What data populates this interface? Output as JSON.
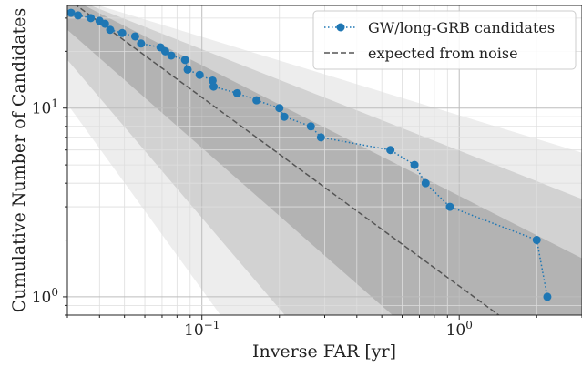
{
  "chart_data": {
    "type": "scatter",
    "xlabel": "Inverse FAR [yr]",
    "ylabel": "Cumulative Number of Candidates",
    "xscale": "log",
    "yscale": "log",
    "xlim": [
      0.03,
      3.0
    ],
    "ylim": [
      0.8,
      35
    ],
    "x_ticks": [
      {
        "value": 0.1,
        "base": "10",
        "exp": "−1"
      },
      {
        "value": 1,
        "base": "10",
        "exp": "0"
      }
    ],
    "y_ticks": [
      {
        "value": 1,
        "base": "10",
        "exp": "0"
      },
      {
        "value": 10,
        "base": "10",
        "exp": "1"
      }
    ],
    "grid": true,
    "legend_position": "top-right",
    "series": [
      {
        "name": "GW/long-GRB candidates",
        "color": "#1f77b4",
        "style": "dotted-line-with-markers",
        "x": [
          0.031,
          0.033,
          0.037,
          0.04,
          0.042,
          0.044,
          0.049,
          0.055,
          0.058,
          0.069,
          0.072,
          0.076,
          0.086,
          0.088,
          0.098,
          0.11,
          0.111,
          0.137,
          0.163,
          0.2,
          0.209,
          0.265,
          0.29,
          0.54,
          0.67,
          0.74,
          0.92,
          2.0,
          2.2
        ],
        "y": [
          32,
          31,
          30,
          29,
          28,
          26,
          25,
          24,
          22,
          21,
          20,
          19,
          18,
          16,
          15,
          14,
          13,
          12,
          11,
          10,
          9,
          8,
          7,
          6,
          5,
          4,
          3,
          2,
          1
        ]
      },
      {
        "name": "expected from noise",
        "color": "#555555",
        "style": "dashed",
        "x": [
          0.03,
          1.5
        ],
        "y": [
          38,
          0.76
        ]
      }
    ],
    "bands": [
      {
        "level": "outer",
        "color": "#ededed",
        "lower": [
          [
            0.03,
            10.5
          ],
          [
            0.118,
            0.8
          ]
        ],
        "upper": [
          [
            0.03,
            40
          ],
          [
            3.0,
            5.8
          ]
        ]
      },
      {
        "level": "middle",
        "color": "#d2d2d2",
        "lower": [
          [
            0.03,
            18
          ],
          [
            0.21,
            0.8
          ]
        ],
        "upper": [
          [
            0.03,
            40
          ],
          [
            3.0,
            3.3
          ]
        ]
      },
      {
        "level": "inner",
        "color": "#b3b3b3",
        "lower": [
          [
            0.03,
            26
          ],
          [
            0.55,
            0.8
          ]
        ],
        "upper": [
          [
            0.03,
            40
          ],
          [
            3.0,
            1.6
          ]
        ]
      }
    ]
  }
}
